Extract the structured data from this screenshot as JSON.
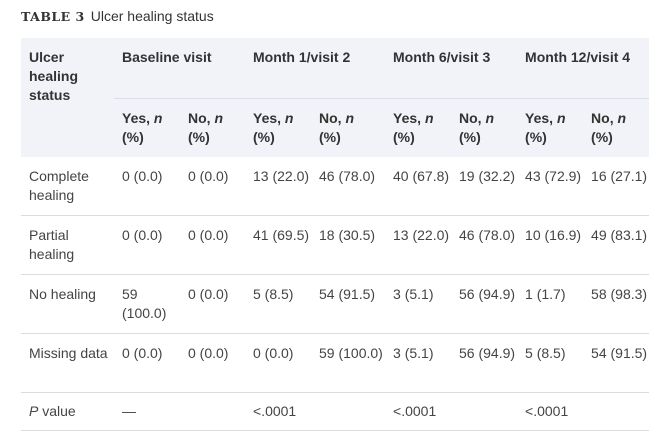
{
  "caption": {
    "label": "TABLE 3",
    "title": "Ulcer healing status"
  },
  "table": {
    "row_header": "Ulcer healing status",
    "groups": [
      "Baseline visit",
      "Month 1/visit 2",
      "Month 6/visit 3",
      "Month 12/visit 4"
    ],
    "subheaders": {
      "yes_prefix": "Yes, ",
      "no_prefix": "No, ",
      "n": "n",
      "pct": "(%)"
    },
    "rows": [
      {
        "label": "Complete healing",
        "cells": [
          "0 (0.0)",
          "0 (0.0)",
          "13 (22.0)",
          "46 (78.0)",
          "40 (67.8)",
          "19 (32.2)",
          "43 (72.9)",
          "16 (27.1)"
        ]
      },
      {
        "label": "Partial healing",
        "cells": [
          "0 (0.0)",
          "0 (0.0)",
          "41 (69.5)",
          "18 (30.5)",
          "13 (22.0)",
          "46 (78.0)",
          "10 (16.9)",
          "49 (83.1)"
        ]
      },
      {
        "label": "No healing",
        "cells": [
          "59 (100.0)",
          "0 (0.0)",
          "5 (8.5)",
          "54 (91.5)",
          "3 (5.1)",
          "56 (94.9)",
          "1 (1.7)",
          "58 (98.3)"
        ]
      },
      {
        "label": "Missing data",
        "cells": [
          "0 (0.0)",
          "0 (0.0)",
          "0 (0.0)",
          "59 (100.0)",
          "3 (5.1)",
          "56 (94.9)",
          "5 (8.5)",
          "54 (91.5)"
        ]
      }
    ],
    "pvalue": {
      "label_italic": "P",
      "label_rest": " value",
      "baseline": "—",
      "month1": "<.0001",
      "month6": "<.0001",
      "month12": "<.0001"
    }
  }
}
